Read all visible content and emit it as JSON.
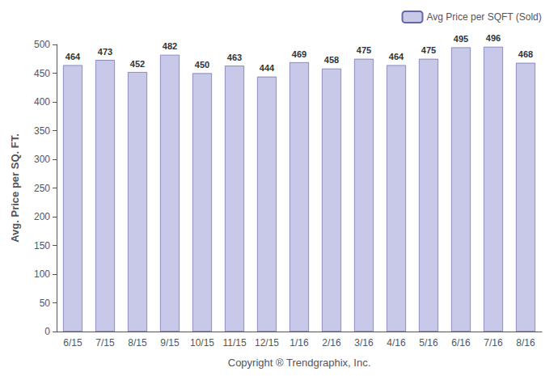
{
  "chart_data": {
    "type": "bar",
    "categories": [
      "6/15",
      "7/15",
      "8/15",
      "9/15",
      "10/15",
      "11/15",
      "12/15",
      "1/16",
      "2/16",
      "3/16",
      "4/16",
      "5/16",
      "6/16",
      "7/16",
      "8/16"
    ],
    "series": [
      {
        "name": "Avg Price per SQFT (Sold)",
        "color": "#c8c8e8",
        "values": [
          464,
          473,
          452,
          482,
          450,
          463,
          444,
          469,
          458,
          475,
          464,
          475,
          495,
          496,
          468
        ]
      }
    ],
    "xlabel": "Copyright ® Trendgraphix, Inc.",
    "ylabel": "Avg. Price per SQ. FT.",
    "ylim": [
      0,
      500
    ],
    "yticks": [
      0,
      50,
      100,
      150,
      200,
      250,
      300,
      350,
      400,
      450,
      500
    ],
    "grid": false,
    "legend": "upper right",
    "data_labels": true
  }
}
